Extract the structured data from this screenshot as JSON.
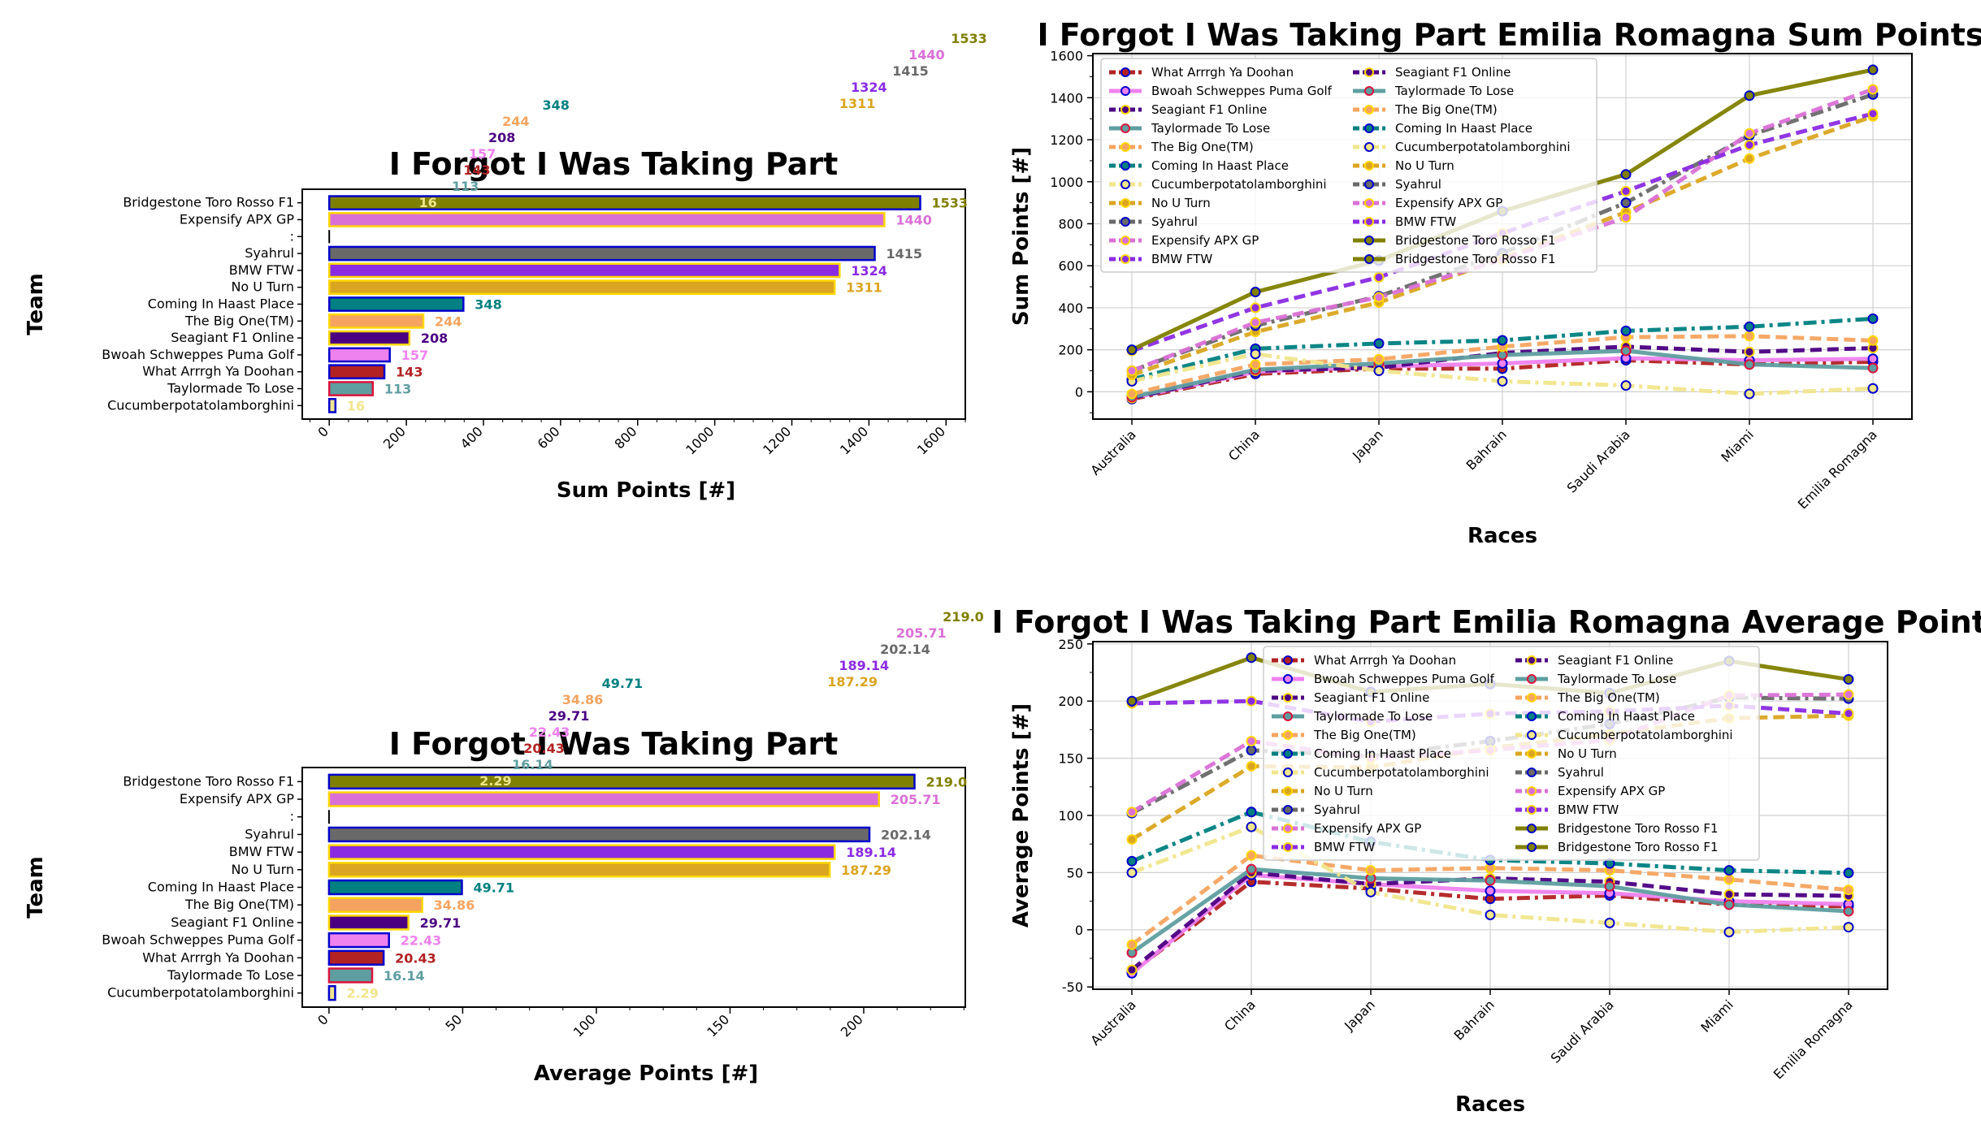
{
  "teams": [
    {
      "name": "Bridgestone Toro Rosso F1",
      "color": "#808000",
      "edge": "#0000cc",
      "dash": "solid"
    },
    {
      "name": "Expensify APX GP",
      "color": "#da70d6",
      "edge": "#ffd700",
      "dash": "dashed"
    },
    {
      "name": "Syahrul",
      "color": "#696969",
      "edge": "#0000cc",
      "dash": "dashdot"
    },
    {
      "name": "BMW FTW",
      "color": "#8a2be2",
      "edge": "#ffd700",
      "dash": "dashed"
    },
    {
      "name": "No U Turn",
      "color": "#daa520",
      "edge": "#ffd700",
      "dash": "dashed"
    },
    {
      "name": "Coming In Haast Place",
      "color": "#008080",
      "edge": "#0000cc",
      "dash": "dashdot"
    },
    {
      "name": "The Big One(TM)",
      "color": "#f4a460",
      "edge": "#ffd700",
      "dash": "dashed"
    },
    {
      "name": "Seagiant F1 Online",
      "color": "#4b0082",
      "edge": "#ffd700",
      "dash": "dashed"
    },
    {
      "name": "Bwoah Schweppes Puma Golf",
      "color": "#ee82ee",
      "edge": "#0000cc",
      "dash": "solid"
    },
    {
      "name": "What Arrrgh Ya Doohan",
      "color": "#b22222",
      "edge": "#0000cc",
      "dash": "dashdot"
    },
    {
      "name": "Taylormade To Lose",
      "color": "#5f9ea0",
      "edge": "#dc143c",
      "dash": "solid"
    },
    {
      "name": "Cucumberpotatolamborghini",
      "color": "#f0e68c",
      "edge": "#0000cc",
      "dash": "dashdot"
    }
  ],
  "chart_data": [
    {
      "type": "bar",
      "orientation": "horizontal",
      "title": "I Forgot I Was Taking Part",
      "xlabel": "Sum Points [#]",
      "ylabel": "Team",
      "xlim": [
        -70,
        1650
      ],
      "xticks": [
        0,
        200,
        400,
        600,
        800,
        1000,
        1200,
        1400,
        1600
      ],
      "categories": [
        "Bridgestone Toro Rosso F1",
        "Expensify APX GP",
        ":",
        "Syahrul",
        "BMW FTW",
        "No U Turn",
        "Coming In Haast Place",
        "The Big One(TM)",
        "Seagiant F1 Online",
        "Bwoah Schweppes Puma Golf",
        "What Arrrgh Ya Doohan",
        "Taylormade To Lose",
        "Cucumberpotatolamborghini"
      ],
      "values": [
        1533,
        1440,
        0,
        1415,
        1324,
        1311,
        348,
        244,
        208,
        157,
        143,
        113,
        16
      ],
      "value_labels": [
        "1533",
        "1440",
        "",
        "1415",
        "1324",
        "1311",
        "348",
        "244",
        "208",
        "157",
        "143",
        "113",
        "16"
      ]
    },
    {
      "type": "line",
      "title": "I Forgot I Was Taking Part Emilia Romagna Sum Points",
      "xlabel": "Races",
      "ylabel": "Sum Points [#]",
      "ylim": [
        -130,
        1610
      ],
      "yticks": [
        0,
        200,
        400,
        600,
        800,
        1000,
        1200,
        1400,
        1600
      ],
      "x": [
        "Australia",
        "China",
        "Japan",
        "Bahrain",
        "Saudi Arabia",
        "Miami",
        "Emilia Romagna"
      ],
      "series": [
        {
          "name": "What Arrrgh Ya Doohan",
          "values": [
            -35,
            85,
            110,
            110,
            150,
            130,
            143
          ]
        },
        {
          "name": "Bwoah Schweppes Puma Golf",
          "values": [
            -30,
            95,
            120,
            135,
            160,
            150,
            157
          ]
        },
        {
          "name": "Seagiant F1 Online",
          "values": [
            -30,
            100,
            115,
            185,
            215,
            190,
            208
          ]
        },
        {
          "name": "Taylormade To Lose",
          "values": [
            -25,
            105,
            135,
            175,
            195,
            130,
            113
          ]
        },
        {
          "name": "The Big One(TM)",
          "values": [
            -10,
            130,
            155,
            215,
            260,
            265,
            244
          ]
        },
        {
          "name": "Coming In Haast Place",
          "values": [
            60,
            205,
            230,
            245,
            290,
            310,
            348
          ]
        },
        {
          "name": "Cucumberpotatolamborghini",
          "values": [
            50,
            180,
            100,
            50,
            30,
            -10,
            16
          ]
        },
        {
          "name": "No U Turn",
          "values": [
            80,
            285,
            425,
            635,
            855,
            1110,
            1311
          ]
        },
        {
          "name": "Syahrul",
          "values": [
            100,
            315,
            455,
            660,
            900,
            1220,
            1415
          ]
        },
        {
          "name": "Expensify APX GP",
          "values": [
            100,
            330,
            450,
            630,
            830,
            1230,
            1440
          ]
        },
        {
          "name": "BMW FTW",
          "values": [
            195,
            400,
            545,
            755,
            955,
            1175,
            1324
          ]
        },
        {
          "name": "Bridgestone Toro Rosso F1",
          "values": [
            200,
            475,
            625,
            860,
            1035,
            1410,
            1533
          ]
        }
      ],
      "legend": "top-left"
    },
    {
      "type": "bar",
      "orientation": "horizontal",
      "title": "I Forgot I Was Taking Part",
      "xlabel": "Average Points [#]",
      "ylabel": "Team",
      "xlim": [
        -10,
        238
      ],
      "xticks": [
        0,
        50,
        100,
        150,
        200
      ],
      "categories": [
        "Bridgestone Toro Rosso F1",
        "Expensify APX GP",
        ":",
        "Syahrul",
        "BMW FTW",
        "No U Turn",
        "Coming In Haast Place",
        "The Big One(TM)",
        "Seagiant F1 Online",
        "Bwoah Schweppes Puma Golf",
        "What Arrrgh Ya Doohan",
        "Taylormade To Lose",
        "Cucumberpotatolamborghini"
      ],
      "values": [
        219.0,
        205.71,
        0,
        202.14,
        189.14,
        187.29,
        49.71,
        34.86,
        29.71,
        22.43,
        20.43,
        16.14,
        2.29
      ],
      "value_labels": [
        "219.0",
        "205.71",
        "",
        "202.14",
        "189.14",
        "187.29",
        "49.71",
        "34.86",
        "29.71",
        "22.43",
        "20.43",
        "16.14",
        "2.29"
      ]
    },
    {
      "type": "line",
      "title": "I Forgot I Was Taking Part Emilia Romagna Average Points",
      "xlabel": "Races",
      "ylabel": "Average Points [#]",
      "ylim": [
        -52,
        252
      ],
      "yticks": [
        -50,
        0,
        50,
        100,
        150,
        200,
        250
      ],
      "x": [
        "Australia",
        "China",
        "Japan",
        "Bahrain",
        "Saudi Arabia",
        "Miami",
        "Emilia Romagna"
      ],
      "series": [
        {
          "name": "What Arrrgh Ya Doohan",
          "values": [
            -37,
            42,
            36,
            27,
            30,
            22,
            20.43
          ]
        },
        {
          "name": "Bwoah Schweppes Puma Golf",
          "values": [
            -38,
            48,
            40,
            34,
            32,
            25,
            22.43
          ]
        },
        {
          "name": "Seagiant F1 Online",
          "values": [
            -35,
            50,
            40,
            45,
            42,
            31,
            29.71
          ]
        },
        {
          "name": "Taylormade To Lose",
          "values": [
            -20,
            53,
            45,
            43,
            38,
            22,
            16.14
          ]
        },
        {
          "name": "The Big One(TM)",
          "values": [
            -13,
            65,
            52,
            54,
            52,
            44,
            34.86
          ]
        },
        {
          "name": "Coming In Haast Place",
          "values": [
            60,
            103,
            77,
            61,
            58,
            52,
            49.71
          ]
        },
        {
          "name": "Cucumberpotatolamborghini",
          "values": [
            50,
            90,
            33,
            13,
            6,
            -2,
            2.29
          ]
        },
        {
          "name": "No U Turn",
          "values": [
            79,
            143,
            142,
            159,
            171,
            185,
            187.29
          ]
        },
        {
          "name": "Syahrul",
          "values": [
            102,
            157,
            152,
            165,
            180,
            203,
            202.14
          ]
        },
        {
          "name": "Expensify APX GP",
          "values": [
            103,
            165,
            150,
            157,
            166,
            205,
            205.71
          ]
        },
        {
          "name": "BMW FTW",
          "values": [
            198,
            200,
            182,
            189,
            191,
            196,
            189.14
          ]
        },
        {
          "name": "Bridgestone Toro Rosso F1",
          "values": [
            200,
            238,
            208,
            215,
            207,
            235,
            219.0
          ]
        }
      ],
      "legend": "top-center"
    }
  ]
}
